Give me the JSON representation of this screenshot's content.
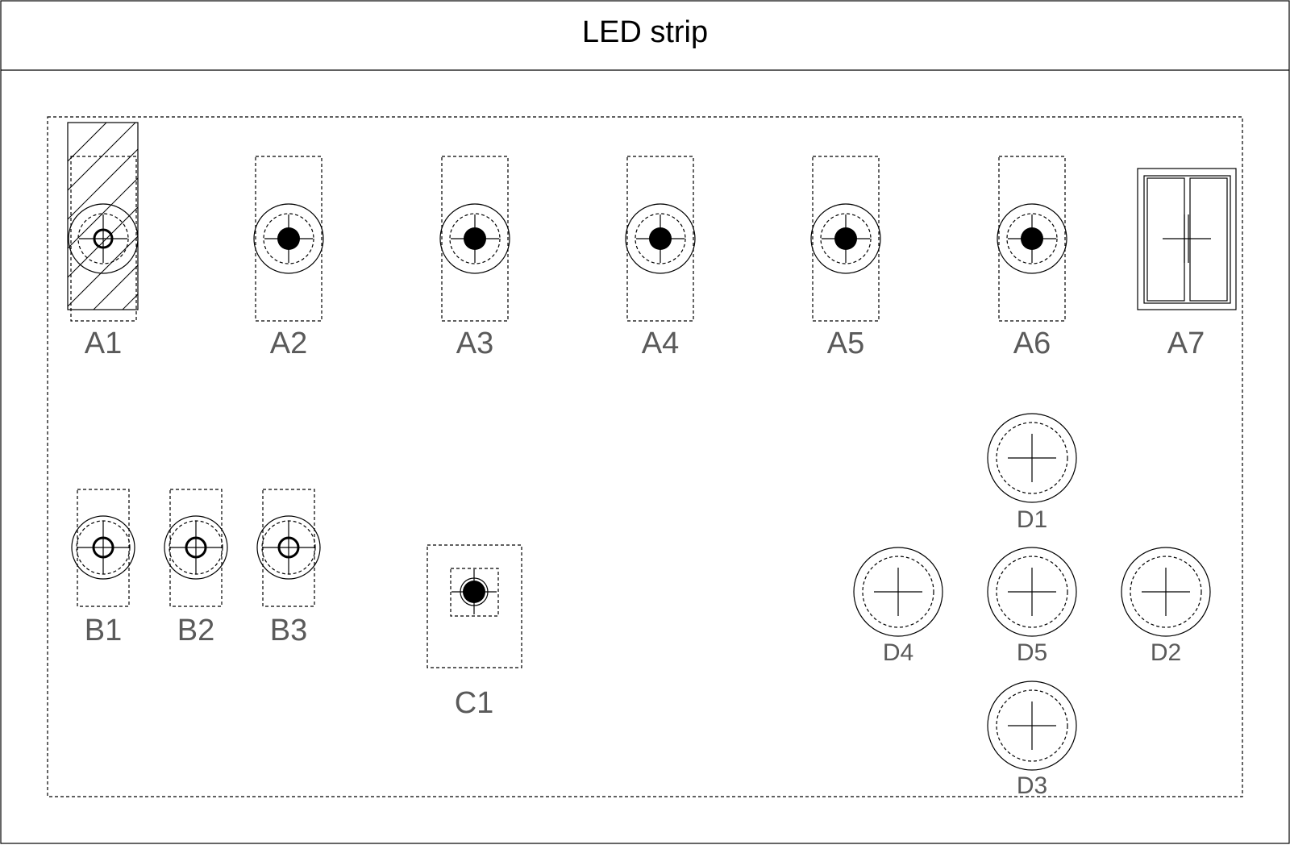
{
  "title": "LED strip",
  "components": {
    "a1": "A1",
    "a2": "A2",
    "a3": "A3",
    "a4": "A4",
    "a5": "A5",
    "a6": "A6",
    "a7": "A7",
    "b1": "B1",
    "b2": "B2",
    "b3": "B3",
    "c1": "C1",
    "d1": "D1",
    "d2": "D2",
    "d3": "D3",
    "d4": "D4",
    "d5": "D5"
  }
}
